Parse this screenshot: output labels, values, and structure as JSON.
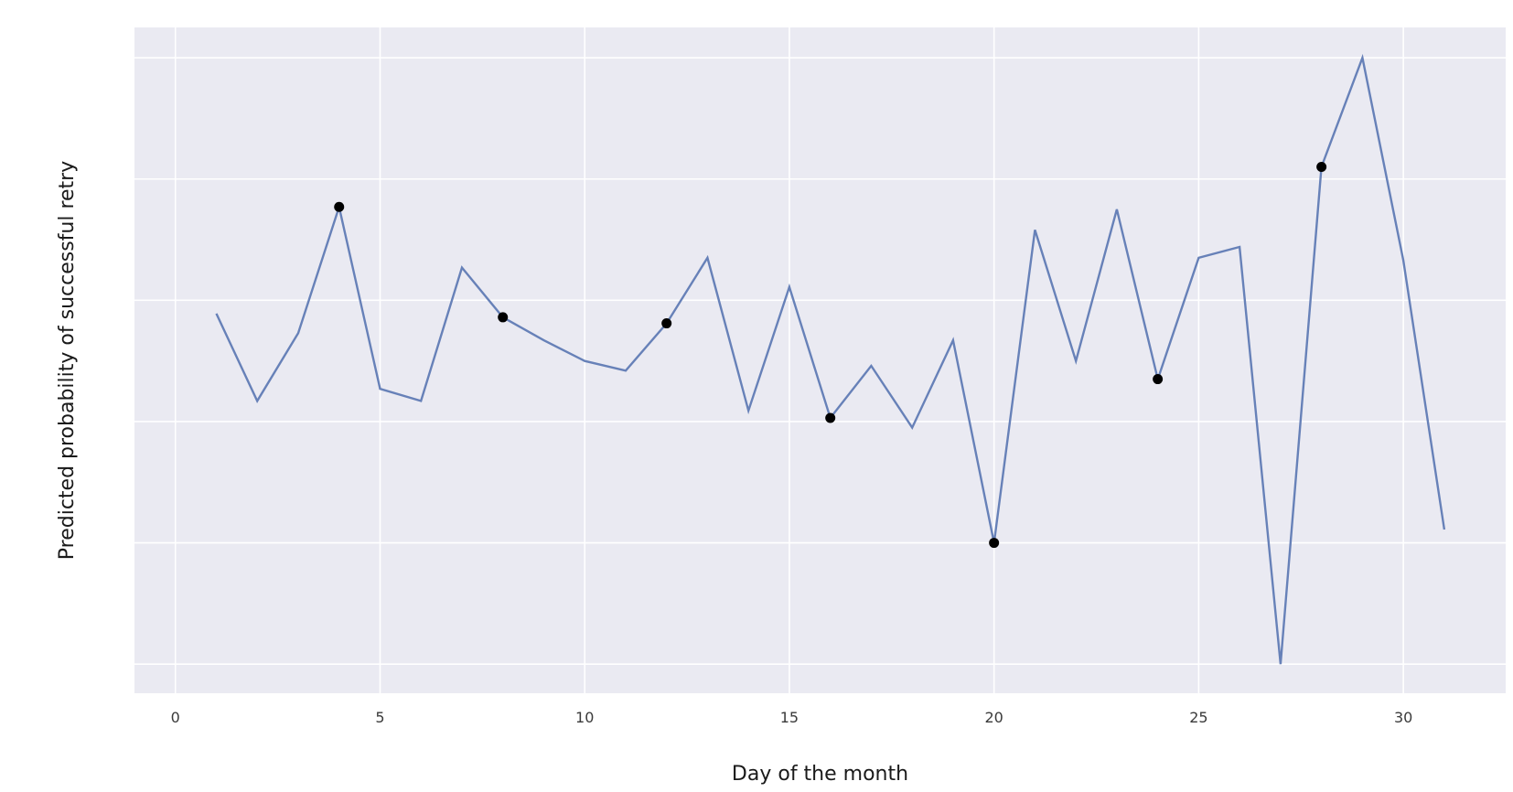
{
  "chart_data": {
    "type": "line",
    "title": "",
    "xlabel": "Day of the month",
    "ylabel": "Predicted probability of successful retry",
    "xlim": [
      -1,
      32.5
    ],
    "ylim": [
      -0.24,
      5.25
    ],
    "xticks": [
      0,
      5,
      10,
      15,
      20,
      25,
      30
    ],
    "yticks": [
      0,
      1,
      2,
      3,
      4,
      5
    ],
    "ytick_labels_visible": false,
    "grid": true,
    "legend": "none",
    "series": [
      {
        "style": "line",
        "color": "#6781b8",
        "x": [
          1,
          2,
          3,
          4,
          5,
          6,
          7,
          8,
          9,
          10,
          11,
          12,
          13,
          14,
          15,
          16,
          17,
          18,
          19,
          20,
          21,
          22,
          23,
          24,
          25,
          26,
          27,
          28,
          29,
          30,
          31
        ],
        "values": [
          2.89,
          2.17,
          2.73,
          3.77,
          2.27,
          2.17,
          3.27,
          2.86,
          2.67,
          2.5,
          2.42,
          2.81,
          3.35,
          2.09,
          3.11,
          2.03,
          2.46,
          1.95,
          2.67,
          1.0,
          3.58,
          2.5,
          3.75,
          2.35,
          3.35,
          3.44,
          0.0,
          4.1,
          5.0,
          3.33,
          1.11
        ]
      },
      {
        "style": "markers",
        "color": "#000000",
        "x": [
          4,
          8,
          12,
          16,
          20,
          24,
          28
        ],
        "values": [
          3.77,
          2.86,
          2.81,
          2.03,
          1.0,
          2.35,
          4.1
        ]
      }
    ]
  },
  "style": {
    "plot_background": "#eaeaf2",
    "grid_color": "#ffffff",
    "line_color": "#6781b8",
    "marker_color": "#000000"
  }
}
